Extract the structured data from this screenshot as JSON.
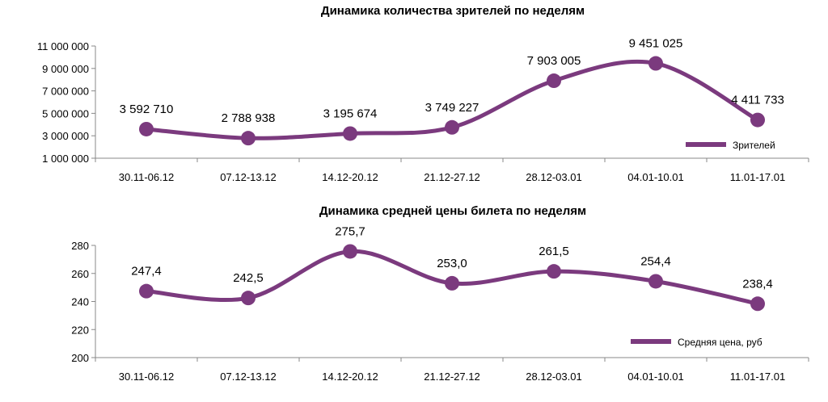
{
  "chart_data": [
    {
      "type": "line",
      "title": "Динамика количества зрителей по неделям",
      "categories": [
        "30.11-06.12",
        "07.12-13.12",
        "14.12-20.12",
        "21.12-27.12",
        "28.12-03.01",
        "04.01-10.01",
        "11.01-17.01"
      ],
      "series": [
        {
          "name": "Зрителей",
          "values": [
            3592710,
            2788938,
            3195674,
            3749227,
            7903005,
            9451025,
            4411733
          ],
          "labels": [
            "3 592 710",
            "2 788 938",
            "3 195 674",
            "3 749 227",
            "7 903 005",
            "9 451 025",
            "4 411 733"
          ]
        }
      ],
      "ylim": [
        1000000,
        11000000
      ],
      "yticks": [
        1000000,
        3000000,
        5000000,
        7000000,
        9000000,
        11000000
      ],
      "ytick_labels": [
        "1 000 000",
        "3 000 000",
        "5 000 000",
        "7 000 000",
        "9 000 000",
        "11 000 000"
      ],
      "legend": "bottom-right",
      "color": "#7b3a7e"
    },
    {
      "type": "line",
      "title": "Динамика средней цены билета по неделям",
      "categories": [
        "30.11-06.12",
        "07.12-13.12",
        "14.12-20.12",
        "21.12-27.12",
        "28.12-03.01",
        "04.01-10.01",
        "11.01-17.01"
      ],
      "series": [
        {
          "name": "Средняя цена, руб",
          "values": [
            247.4,
            242.5,
            275.7,
            253.0,
            261.5,
            254.4,
            238.4
          ],
          "labels": [
            "247,4",
            "242,5",
            "275,7",
            "253,0",
            "261,5",
            "254,4",
            "238,4"
          ]
        }
      ],
      "ylim": [
        200,
        280
      ],
      "yticks": [
        200,
        220,
        240,
        260,
        280
      ],
      "ytick_labels": [
        "200",
        "220",
        "240",
        "260",
        "280"
      ],
      "legend": "bottom-right",
      "color": "#7b3a7e"
    }
  ]
}
